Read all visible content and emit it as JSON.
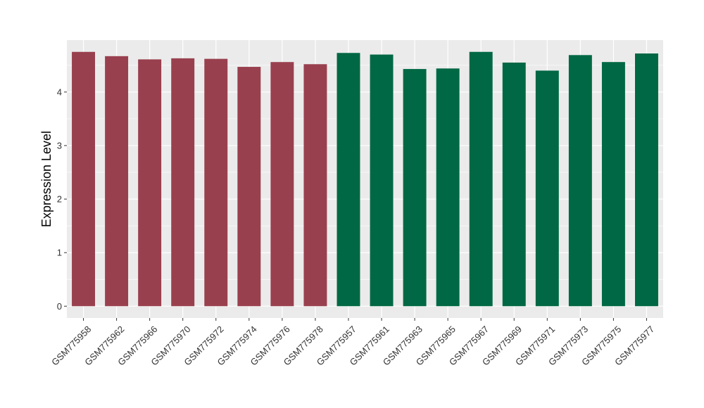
{
  "chart_data": {
    "type": "bar",
    "title": "",
    "xlabel": "",
    "ylabel": "Expression Level",
    "ylim": [
      -0.22,
      4.97
    ],
    "yticks": [
      0,
      1,
      2,
      3,
      4
    ],
    "grid": true,
    "legend": "none",
    "categories": [
      "GSM775958",
      "GSM775962",
      "GSM775966",
      "GSM775970",
      "GSM775972",
      "GSM775974",
      "GSM775976",
      "GSM775978",
      "GSM775957",
      "GSM775961",
      "GSM775963",
      "GSM775965",
      "GSM775967",
      "GSM775969",
      "GSM775971",
      "GSM775973",
      "GSM775975",
      "GSM775977"
    ],
    "values": [
      4.75,
      4.67,
      4.61,
      4.63,
      4.62,
      4.47,
      4.56,
      4.52,
      4.73,
      4.7,
      4.43,
      4.44,
      4.75,
      4.55,
      4.4,
      4.69,
      4.56,
      4.72
    ],
    "colors": [
      "#99404F",
      "#99404F",
      "#99404F",
      "#99404F",
      "#99404F",
      "#99404F",
      "#99404F",
      "#99404F",
      "#006844",
      "#006844",
      "#006844",
      "#006844",
      "#006844",
      "#006844",
      "#006844",
      "#006844",
      "#006844",
      "#006844"
    ],
    "panel_background": "#EBEBEB",
    "grid_color": "#FFFFFF"
  }
}
